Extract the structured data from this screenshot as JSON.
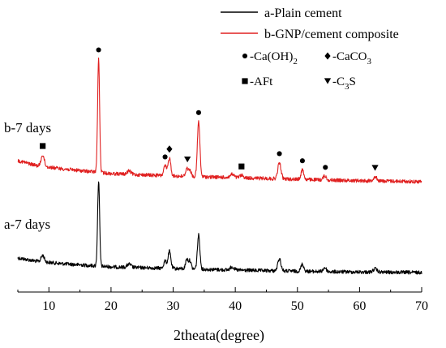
{
  "chart_data": {
    "type": "line",
    "title": "",
    "xlabel": "2theata(degree)",
    "ylabel": "",
    "xlim": [
      5,
      70
    ],
    "xticks": [
      10,
      20,
      30,
      40,
      50,
      60,
      70
    ],
    "grid": false,
    "legend": {
      "placement": "top-right"
    },
    "series": [
      {
        "name": "a-Plain cement",
        "label": "a-7 days",
        "color": "#000000",
        "baseline": [
          [
            5,
            318
          ],
          [
            8,
            322
          ],
          [
            12,
            325
          ],
          [
            16,
            327
          ],
          [
            20,
            329
          ],
          [
            30,
            331
          ],
          [
            40,
            333
          ],
          [
            55,
            335
          ],
          [
            70,
            336
          ]
        ],
        "peaks": [
          [
            9.0,
            8,
            0.25
          ],
          [
            18.0,
            105,
            0.16
          ],
          [
            22.9,
            4,
            0.3
          ],
          [
            28.7,
            9,
            0.22
          ],
          [
            29.4,
            21,
            0.22
          ],
          [
            32.2,
            12,
            0.2
          ],
          [
            32.7,
            10,
            0.2
          ],
          [
            34.1,
            42,
            0.2
          ],
          [
            39.5,
            4,
            0.3
          ],
          [
            47.1,
            15,
            0.25
          ],
          [
            50.8,
            9,
            0.22
          ],
          [
            54.4,
            5,
            0.25
          ],
          [
            62.5,
            4,
            0.3
          ]
        ],
        "noise": 2.2
      },
      {
        "name": "b-GNP/cement composite",
        "label": "b-7 days",
        "color": "#e02020",
        "baseline": [
          [
            5,
            198
          ],
          [
            8,
            204
          ],
          [
            12,
            208
          ],
          [
            16,
            211
          ],
          [
            20,
            214
          ],
          [
            30,
            217
          ],
          [
            40,
            219
          ],
          [
            55,
            222
          ],
          [
            70,
            224
          ]
        ],
        "peaks": [
          [
            9.0,
            14,
            0.25
          ],
          [
            18.0,
            140,
            0.16
          ],
          [
            22.9,
            4,
            0.3
          ],
          [
            28.7,
            12,
            0.22
          ],
          [
            29.4,
            22,
            0.22
          ],
          [
            32.2,
            10,
            0.2
          ],
          [
            32.7,
            8,
            0.2
          ],
          [
            34.1,
            68,
            0.2
          ],
          [
            39.5,
            4,
            0.3
          ],
          [
            41.0,
            3,
            0.3
          ],
          [
            47.1,
            20,
            0.25
          ],
          [
            50.8,
            12,
            0.22
          ],
          [
            54.4,
            5,
            0.25
          ],
          [
            62.5,
            5,
            0.3
          ]
        ],
        "noise": 2.2
      }
    ],
    "phase_legend": [
      {
        "symbol": "circle",
        "label": "-Ca(OH)",
        "sub": "2"
      },
      {
        "symbol": "diamond",
        "label": "-CaCO",
        "sub": "3"
      },
      {
        "symbol": "square",
        "label": "-AFt",
        "sub": ""
      },
      {
        "symbol": "triangle-down",
        "label": "-C",
        "sub": "3",
        "suffix": "S"
      }
    ],
    "peak_markers": [
      {
        "x": 9.0,
        "symbol": "square"
      },
      {
        "x": 18.0,
        "symbol": "circle"
      },
      {
        "x": 28.7,
        "symbol": "circle"
      },
      {
        "x": 29.4,
        "symbol": "diamond"
      },
      {
        "x": 32.3,
        "symbol": "triangle-down"
      },
      {
        "x": 34.1,
        "symbol": "circle"
      },
      {
        "x": 41.0,
        "symbol": "square"
      },
      {
        "x": 47.1,
        "symbol": "circle"
      },
      {
        "x": 50.8,
        "symbol": "circle"
      },
      {
        "x": 54.5,
        "symbol": "circle"
      },
      {
        "x": 62.5,
        "symbol": "triangle-down"
      }
    ]
  }
}
